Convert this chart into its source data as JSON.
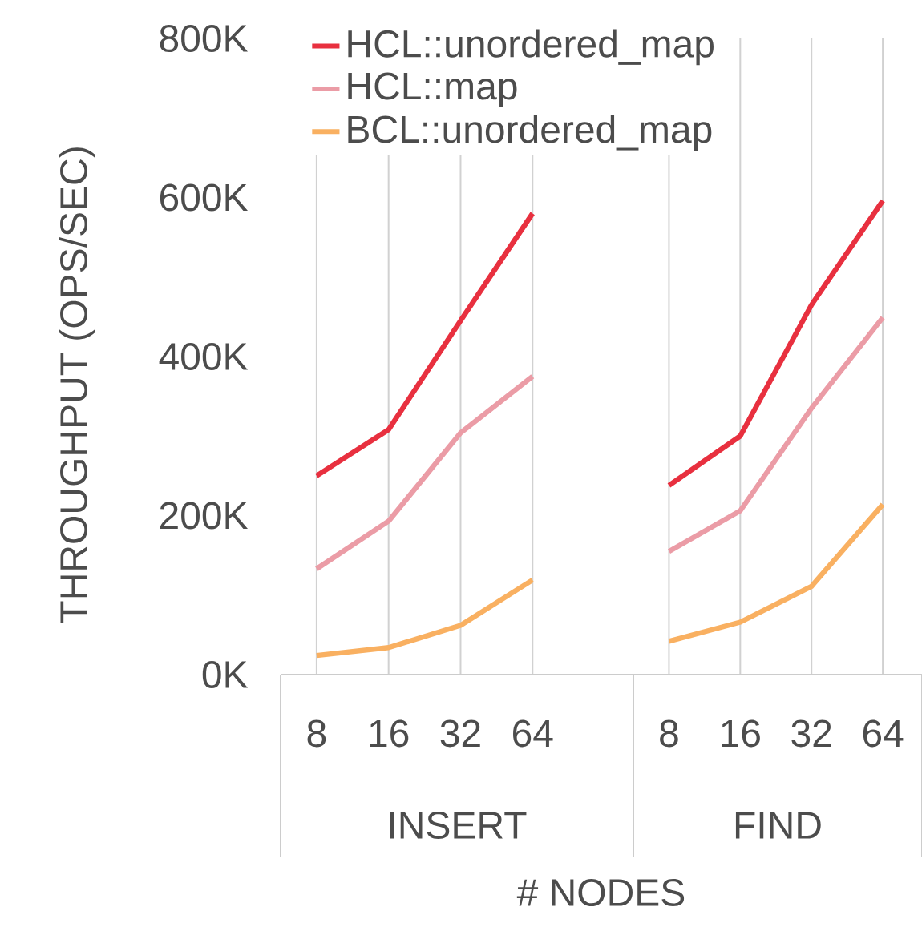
{
  "chart_data": [
    {
      "type": "line",
      "xlabel": "INSERT",
      "ylabel": "THROUGHPUT (OPS/SEC)",
      "categories": [
        "8",
        "16",
        "32",
        "64"
      ],
      "ylim": [
        0,
        800000
      ],
      "yticks": [
        {
          "value": 0,
          "label": "0K"
        },
        {
          "value": 200000,
          "label": "200K"
        },
        {
          "value": 400000,
          "label": "400K"
        },
        {
          "value": 600000,
          "label": "600K"
        },
        {
          "value": 800000,
          "label": "800K"
        }
      ],
      "grid": "x",
      "legend": "top",
      "marker": "none",
      "series": [
        {
          "name": "HCL::unordered_map",
          "color": "#e8303f",
          "values": [
            250000,
            308000,
            445000,
            580000
          ]
        },
        {
          "name": "HCL::map",
          "color": "#eb9ca6",
          "values": [
            133000,
            193000,
            304000,
            375000
          ]
        },
        {
          "name": "BCL::unordered_map",
          "color": "#f9b061",
          "values": [
            24000,
            34000,
            62000,
            119000
          ]
        }
      ]
    },
    {
      "type": "line",
      "xlabel": "FIND",
      "categories": [
        "8",
        "16",
        "32",
        "64"
      ],
      "tick_labels": "x",
      "ylim": [
        0,
        800000
      ],
      "grid": "x",
      "marker": "none",
      "annotations": [
        "# NODES"
      ],
      "series": [
        {
          "color": "#e8303f",
          "values": [
            238000,
            300000,
            465000,
            596000
          ]
        },
        {
          "color": "#eb9ca6",
          "values": [
            155000,
            206000,
            335000,
            449000
          ]
        },
        {
          "color": "#f9b061",
          "values": [
            42000,
            66000,
            111000,
            214000
          ]
        }
      ]
    }
  ]
}
